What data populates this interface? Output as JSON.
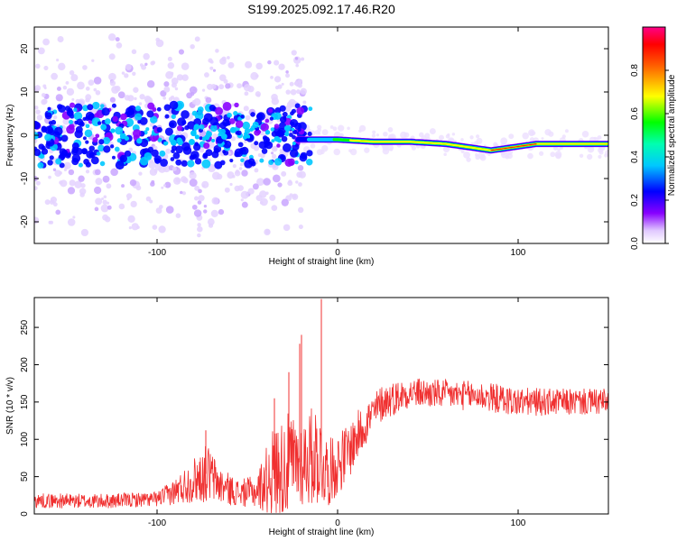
{
  "figure": {
    "title": "S199.2025.092.17.46.R20"
  },
  "chart_data": [
    {
      "type": "heatmap",
      "title": "S199.2025.092.17.46.R20",
      "xlabel": "Height of straight line (km)",
      "ylabel": "Frequency (Hz)",
      "xlim": [
        -168,
        150
      ],
      "ylim": [
        -25,
        25
      ],
      "x_ticks": [
        -100,
        0,
        100
      ],
      "y_ticks": [
        -20,
        -10,
        0,
        10,
        20
      ],
      "colorbar": {
        "label": "Normalized spectral amplitude",
        "range": [
          0.0,
          1.0
        ],
        "ticks": [
          0.0,
          0.2,
          0.4,
          0.6,
          0.8
        ],
        "colormap": "rainbow (violet-blue-cyan-green-yellow-red-magenta)",
        "colors": [
          "#ffffff",
          "#e6d3ff",
          "#8800ff",
          "#0000ff",
          "#00ffff",
          "#00ff00",
          "#ffff00",
          "#ff0000",
          "#ff0088"
        ]
      },
      "description_points": [
        {
          "x": -160,
          "freq": 0,
          "amp": 0.12
        },
        {
          "x": -120,
          "freq": 0,
          "amp": 0.14
        },
        {
          "x": -80,
          "freq": 0,
          "amp": 0.2
        },
        {
          "x": -40,
          "freq": -1,
          "amp": 0.22
        },
        {
          "x": -20,
          "freq": -1,
          "amp": 0.3
        },
        {
          "x": -10,
          "freq": -1,
          "amp": 0.45
        },
        {
          "x": 0,
          "freq": -1,
          "amp": 0.6
        },
        {
          "x": 20,
          "freq": -1.5,
          "amp": 0.85
        },
        {
          "x": 40,
          "freq": -1.5,
          "amp": 0.7
        },
        {
          "x": 60,
          "freq": -2,
          "amp": 0.8
        },
        {
          "x": 85,
          "freq": -3.5,
          "amp": 0.85
        },
        {
          "x": 110,
          "freq": -2,
          "amp": 0.85
        },
        {
          "x": 140,
          "freq": -2,
          "amp": 0.8
        }
      ],
      "noise_spread_hz": 25
    },
    {
      "type": "line",
      "xlabel": "Height of straight line (km)",
      "ylabel": "SNR (10 * v/v)",
      "xlim": [
        -168,
        150
      ],
      "ylim": [
        0,
        290
      ],
      "x_ticks": [
        -100,
        0,
        100
      ],
      "y_ticks": [
        0,
        50,
        100,
        150,
        200,
        250
      ],
      "line_color": "#f03030",
      "envelope": [
        {
          "x": -168,
          "mean": 18,
          "spread": 10
        },
        {
          "x": -130,
          "mean": 17,
          "spread": 10
        },
        {
          "x": -100,
          "mean": 20,
          "spread": 10
        },
        {
          "x": -90,
          "mean": 30,
          "spread": 18
        },
        {
          "x": -80,
          "mean": 45,
          "spread": 30
        },
        {
          "x": -72,
          "mean": 55,
          "spread": 40
        },
        {
          "x": -65,
          "mean": 38,
          "spread": 25
        },
        {
          "x": -55,
          "mean": 28,
          "spread": 18
        },
        {
          "x": -45,
          "mean": 30,
          "spread": 22
        },
        {
          "x": -36,
          "mean": 55,
          "spread": 60
        },
        {
          "x": -28,
          "mean": 65,
          "spread": 70
        },
        {
          "x": -20,
          "mean": 70,
          "spread": 60
        },
        {
          "x": -12,
          "mean": 80,
          "spread": 70
        },
        {
          "x": -5,
          "mean": 55,
          "spread": 45
        },
        {
          "x": 5,
          "mean": 80,
          "spread": 40
        },
        {
          "x": 15,
          "mean": 120,
          "spread": 30
        },
        {
          "x": 25,
          "mean": 150,
          "spread": 25
        },
        {
          "x": 40,
          "mean": 163,
          "spread": 20
        },
        {
          "x": 60,
          "mean": 160,
          "spread": 20
        },
        {
          "x": 80,
          "mean": 158,
          "spread": 20
        },
        {
          "x": 100,
          "mean": 150,
          "spread": 20
        },
        {
          "x": 120,
          "mean": 150,
          "spread": 18
        },
        {
          "x": 150,
          "mean": 150,
          "spread": 18
        }
      ],
      "spikes": [
        {
          "x": -9,
          "value": 288
        },
        {
          "x": -20,
          "value": 240
        },
        {
          "x": -21,
          "value": 228
        },
        {
          "x": -27,
          "value": 190
        },
        {
          "x": -73,
          "value": 112
        },
        {
          "x": -35,
          "value": 155
        }
      ]
    }
  ]
}
